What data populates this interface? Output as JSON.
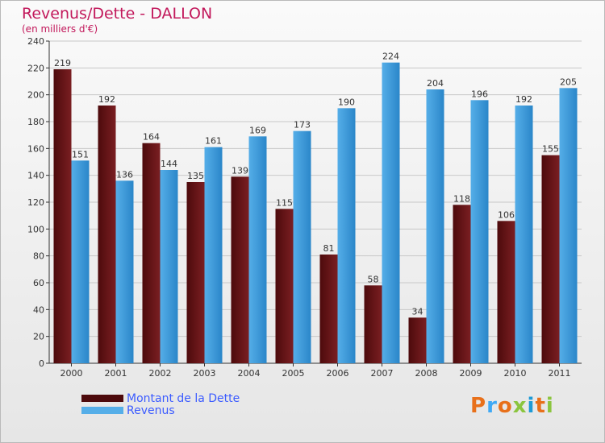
{
  "title": "Revenus/Dette - DALLON",
  "subtitle": "(en milliers d'€)",
  "colors": {
    "debt": "#7a1f22",
    "debt_dark": "#4d0a0c",
    "revenue": "#55aee8",
    "revenue_dark": "#2a86c9"
  },
  "legend": {
    "debt_label": "Montant de la Dette",
    "revenue_label": "Revenus"
  },
  "logo": {
    "text": "Proxiti"
  },
  "chart_data": {
    "type": "bar",
    "categories": [
      "2000",
      "2001",
      "2002",
      "2003",
      "2004",
      "2005",
      "2006",
      "2007",
      "2008",
      "2009",
      "2010",
      "2011"
    ],
    "series": [
      {
        "name": "Montant de la Dette",
        "values": [
          219,
          192,
          164,
          135,
          139,
          115,
          81,
          58,
          34,
          118,
          106,
          155
        ]
      },
      {
        "name": "Revenus",
        "values": [
          151,
          136,
          144,
          161,
          169,
          173,
          190,
          224,
          204,
          196,
          192,
          205
        ]
      }
    ],
    "ylim": [
      0,
      240
    ],
    "yticks": [
      0,
      20,
      40,
      60,
      80,
      100,
      120,
      140,
      160,
      180,
      200,
      220,
      240
    ],
    "grid": true,
    "legend_position": "bottom-left"
  }
}
